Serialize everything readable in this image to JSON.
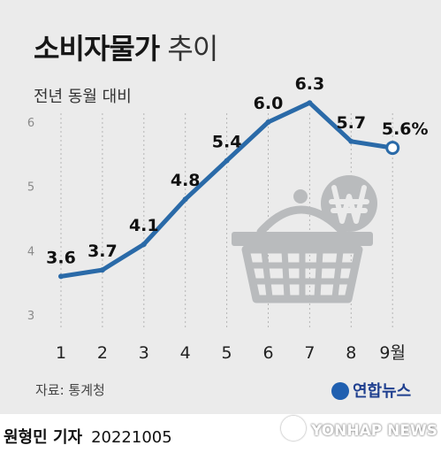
{
  "header": {
    "title_bold": "소비자물가",
    "title_light": "추이",
    "subtitle": "전년 동월 대비"
  },
  "chart_data": {
    "type": "line",
    "x": [
      "1",
      "2",
      "3",
      "4",
      "5",
      "6",
      "7",
      "8",
      "9월"
    ],
    "values": [
      3.6,
      3.7,
      4.1,
      4.8,
      5.4,
      6.0,
      6.3,
      5.7,
      5.6
    ],
    "value_labels": [
      "3.6",
      "3.7",
      "4.1",
      "4.8",
      "5.4",
      "6.0",
      "6.3",
      "5.7",
      "5.6%"
    ],
    "yticks": [
      "3",
      "4",
      "5",
      "6"
    ],
    "ylim": [
      3,
      6
    ],
    "line_color": "#2a6aa8",
    "grid": "vertical dotted"
  },
  "footer": {
    "source": "자료: 통계청",
    "agency": "연합뉴스",
    "reporter": "원형민 기자",
    "date": "20221005",
    "watermark": "YONHAP NEWS"
  }
}
